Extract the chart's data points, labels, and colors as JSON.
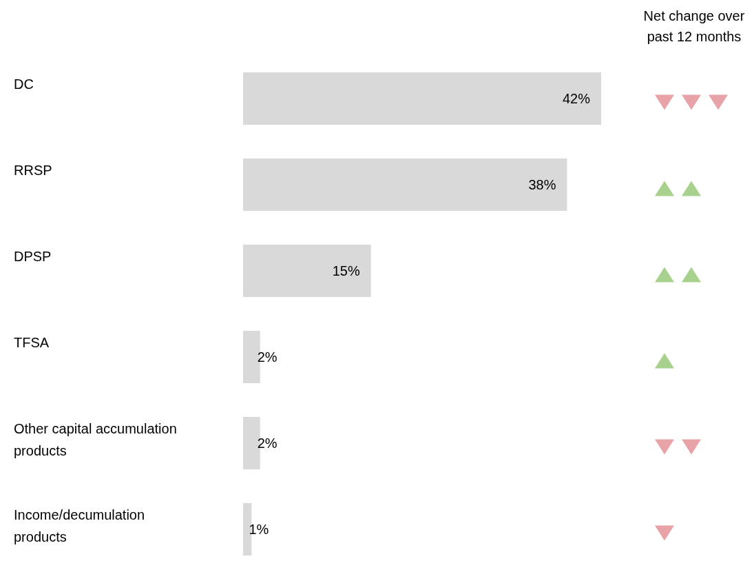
{
  "chart_data": {
    "type": "bar",
    "orientation": "horizontal",
    "categories": [
      "DC",
      "RRSP",
      "DPSP",
      "TFSA",
      "Other capital accumulation products",
      "Income/decumulation products"
    ],
    "values": [
      42,
      38,
      15,
      2,
      2,
      1
    ],
    "color": "#d9d9d9",
    "data_labels": true,
    "value_labels": [
      "42%",
      "38%",
      "15%",
      "2%",
      "2%",
      "1%"
    ],
    "annotations": [
      "Net change over past 12 months"
    ]
  }
}
